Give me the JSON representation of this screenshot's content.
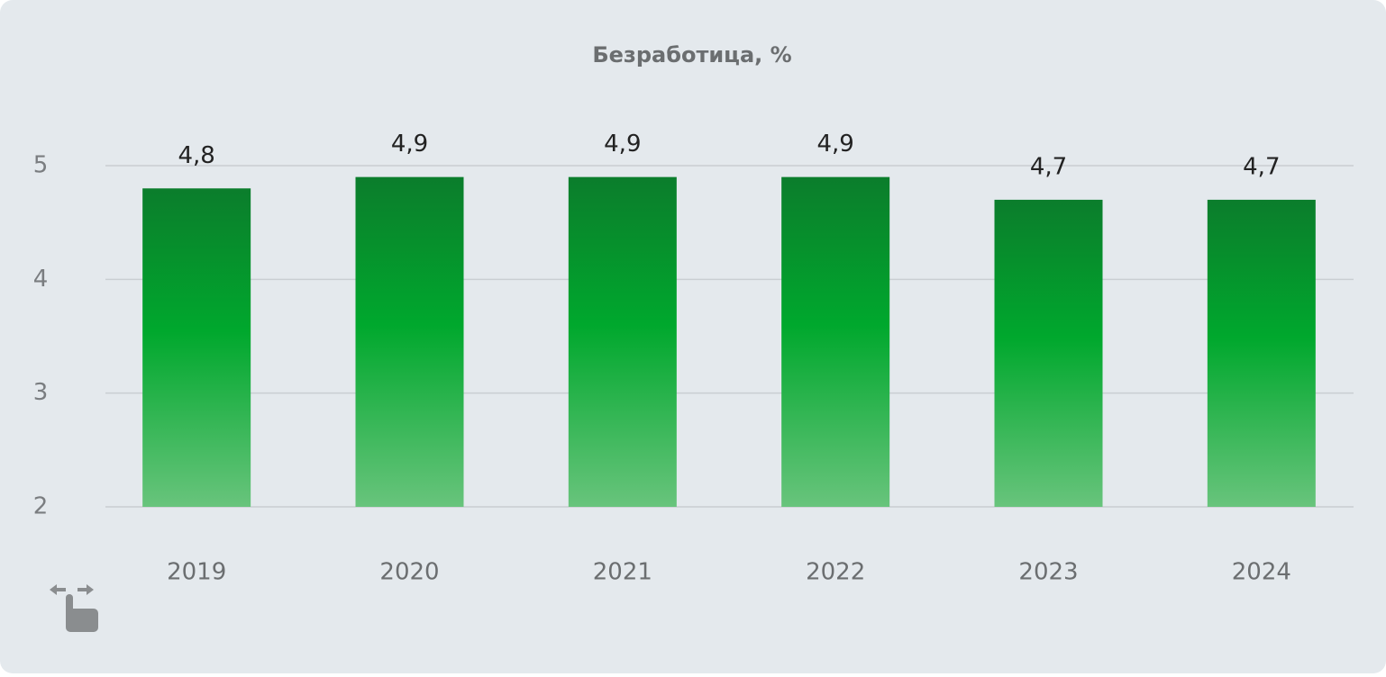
{
  "chart_data": {
    "type": "bar",
    "title": "Безработица, %",
    "categories": [
      "2019",
      "2020",
      "2021",
      "2022",
      "2023",
      "2024"
    ],
    "values": [
      4.8,
      4.9,
      4.9,
      4.9,
      4.7,
      4.7
    ],
    "value_labels": [
      "4,8",
      "4,9",
      "4,9",
      "4,9",
      "4,7",
      "4,7"
    ],
    "color": "#00a82d",
    "ylim": [
      2,
      5
    ],
    "yticks": [
      2,
      3,
      4,
      5
    ],
    "grid": true
  }
}
